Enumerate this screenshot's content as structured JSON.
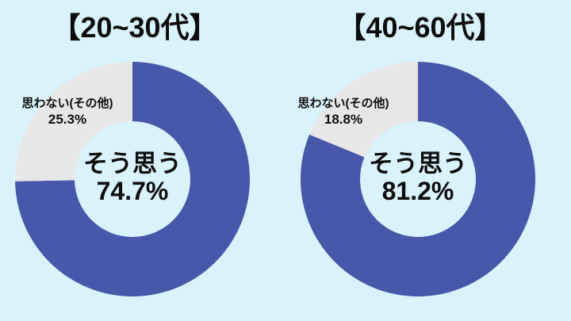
{
  "page": {
    "background_color": "#d8f3fb",
    "text_color": "#0d0d0d"
  },
  "chart_data": [
    {
      "type": "pie",
      "subtype": "donut",
      "title": "【20~30代】",
      "categories": [
        "そう思う",
        "思わない(その他)"
      ],
      "values": [
        74.7,
        25.3
      ],
      "unit": "%",
      "colors": [
        "#4757a9",
        "#e7e7e7"
      ],
      "start_angle_deg": 0,
      "direction": "clockwise",
      "legend": "none",
      "labels": {
        "center": {
          "line1": "そう思う",
          "line2": "74.7%"
        },
        "outside": {
          "line1": "思わない(その他)",
          "line2": "25.3%"
        }
      }
    },
    {
      "type": "pie",
      "subtype": "donut",
      "title": "【40~60代】",
      "categories": [
        "そう思う",
        "思わない(その他)"
      ],
      "values": [
        81.2,
        18.8
      ],
      "unit": "%",
      "colors": [
        "#4757a9",
        "#e7e7e7"
      ],
      "start_angle_deg": 0,
      "direction": "clockwise",
      "legend": "none",
      "labels": {
        "center": {
          "line1": "そう思う",
          "line2": "81.2%"
        },
        "outside": {
          "line1": "思わない(その他)",
          "line2": "18.8%"
        }
      }
    }
  ]
}
